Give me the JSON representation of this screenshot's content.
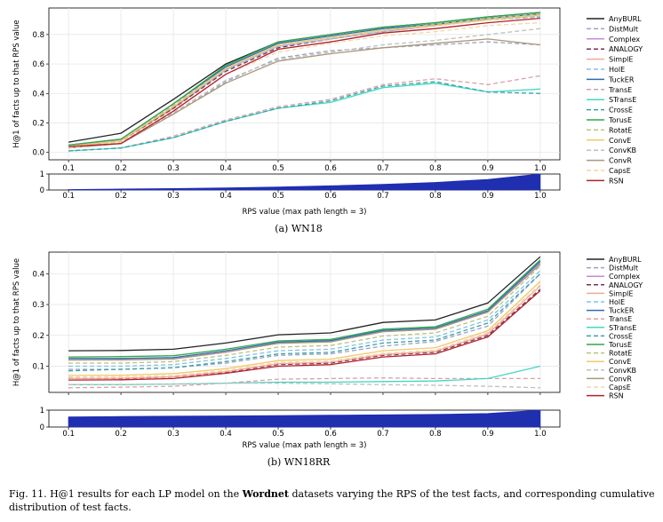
{
  "caption": {
    "prefix": "Fig. 11.  H@1 results for each LP model on the ",
    "bold": "Wordnet",
    "suffix": " datasets varying the RPS of the test facts, and corresponding cumulative distribution of test facts."
  },
  "chart_data": [
    {
      "type": "line",
      "subtitle": "(a) WN18",
      "ylabel": "H@1 of facts up to that RPS value",
      "xlabel": "RPS value (max path length = 3)",
      "x": [
        0.1,
        0.2,
        0.3,
        0.4,
        0.5,
        0.6,
        0.7,
        0.8,
        0.9,
        1.0
      ],
      "xticks": [
        "0.1",
        "0.2",
        "0.3",
        "0.4",
        "0.5",
        "0.6",
        "0.7",
        "0.8",
        "0.9",
        "1.0"
      ],
      "ylim": [
        -0.05,
        0.98
      ],
      "yticks": [
        0.0,
        0.2,
        0.4,
        0.6,
        0.8
      ],
      "ytick_labels": [
        "0.0",
        "0.2",
        "0.4",
        "0.6",
        "0.8"
      ],
      "grid": true,
      "legend": "right",
      "series": [
        {
          "name": "AnyBURL",
          "color": "#222222",
          "dash": "solid",
          "values": [
            0.07,
            0.13,
            0.36,
            0.6,
            0.75,
            0.8,
            0.85,
            0.88,
            0.92,
            0.95
          ]
        },
        {
          "name": "DistMult",
          "color": "#9aa3c4",
          "dash": "dashed",
          "values": [
            0.03,
            0.06,
            0.26,
            0.48,
            0.64,
            0.69,
            0.71,
            0.73,
            0.75,
            0.73
          ]
        },
        {
          "name": "Complex",
          "color": "#c58bd9",
          "dash": "solid",
          "values": [
            0.04,
            0.08,
            0.3,
            0.56,
            0.72,
            0.77,
            0.82,
            0.86,
            0.9,
            0.93
          ]
        },
        {
          "name": "ANALOGY",
          "color": "#7a2f5a",
          "dash": "dashed",
          "values": [
            0.03,
            0.07,
            0.3,
            0.55,
            0.71,
            0.77,
            0.82,
            0.86,
            0.9,
            0.92
          ]
        },
        {
          "name": "SimplE",
          "color": "#f2a89a",
          "dash": "solid",
          "values": [
            0.04,
            0.08,
            0.31,
            0.56,
            0.72,
            0.77,
            0.82,
            0.86,
            0.9,
            0.93
          ]
        },
        {
          "name": "HolE",
          "color": "#7ec3e8",
          "dash": "dashed",
          "values": [
            0.04,
            0.08,
            0.31,
            0.56,
            0.72,
            0.77,
            0.82,
            0.86,
            0.9,
            0.92
          ]
        },
        {
          "name": "TuckER",
          "color": "#2f6bb3",
          "dash": "solid",
          "values": [
            0.05,
            0.09,
            0.33,
            0.58,
            0.74,
            0.79,
            0.84,
            0.87,
            0.91,
            0.94
          ]
        },
        {
          "name": "TransE",
          "color": "#d9a0a8",
          "dash": "dashed",
          "values": [
            0.01,
            0.03,
            0.11,
            0.22,
            0.31,
            0.36,
            0.46,
            0.5,
            0.46,
            0.52
          ]
        },
        {
          "name": "STransE",
          "color": "#3fd9c2",
          "dash": "solid",
          "values": [
            0.01,
            0.03,
            0.1,
            0.21,
            0.3,
            0.34,
            0.44,
            0.47,
            0.41,
            0.43
          ]
        },
        {
          "name": "CrossE",
          "color": "#3aa0a8",
          "dash": "dashed",
          "values": [
            0.01,
            0.03,
            0.1,
            0.21,
            0.3,
            0.35,
            0.45,
            0.48,
            0.41,
            0.4
          ]
        },
        {
          "name": "TorusE",
          "color": "#2fa84f",
          "dash": "solid",
          "values": [
            0.05,
            0.09,
            0.33,
            0.59,
            0.75,
            0.8,
            0.85,
            0.88,
            0.92,
            0.95
          ]
        },
        {
          "name": "RotatE",
          "color": "#b8c47a",
          "dash": "dashed",
          "values": [
            0.04,
            0.08,
            0.32,
            0.57,
            0.73,
            0.78,
            0.83,
            0.87,
            0.91,
            0.94
          ]
        },
        {
          "name": "ConvE",
          "color": "#f0c96a",
          "dash": "solid",
          "values": [
            0.04,
            0.08,
            0.31,
            0.57,
            0.73,
            0.78,
            0.83,
            0.86,
            0.9,
            0.93
          ]
        },
        {
          "name": "ConvKB",
          "color": "#bfbfbf",
          "dash": "dashed",
          "values": [
            0.03,
            0.07,
            0.27,
            0.49,
            0.63,
            0.68,
            0.73,
            0.76,
            0.8,
            0.84
          ]
        },
        {
          "name": "ConvR",
          "color": "#a89878",
          "dash": "solid",
          "values": [
            0.03,
            0.06,
            0.26,
            0.47,
            0.62,
            0.67,
            0.71,
            0.74,
            0.77,
            0.73
          ]
        },
        {
          "name": "CapsE",
          "color": "#f3d7a6",
          "dash": "dashed",
          "values": [
            0.03,
            0.07,
            0.29,
            0.53,
            0.68,
            0.74,
            0.79,
            0.82,
            0.86,
            0.88
          ]
        },
        {
          "name": "RSN",
          "color": "#b3202a",
          "dash": "solid",
          "values": [
            0.04,
            0.06,
            0.28,
            0.53,
            0.7,
            0.75,
            0.81,
            0.84,
            0.88,
            0.91
          ]
        }
      ],
      "distribution": {
        "x": [
          0.1,
          0.2,
          0.3,
          0.4,
          0.5,
          0.6,
          0.7,
          0.8,
          0.9,
          1.0
        ],
        "values": [
          0.03,
          0.06,
          0.09,
          0.13,
          0.19,
          0.26,
          0.35,
          0.47,
          0.66,
          1.0
        ],
        "yticks": [
          "0",
          "1"
        ],
        "color": "#1f2fb0"
      }
    },
    {
      "type": "line",
      "subtitle": "(b) WN18RR",
      "ylabel": "H@1 of facts up to that RPS value",
      "xlabel": "RPS value (max path length = 3)",
      "x": [
        0.1,
        0.2,
        0.3,
        0.4,
        0.5,
        0.6,
        0.7,
        0.8,
        0.9,
        1.0
      ],
      "xticks": [
        "0.1",
        "0.2",
        "0.3",
        "0.4",
        "0.5",
        "0.6",
        "0.7",
        "0.8",
        "0.9",
        "1.0"
      ],
      "ylim": [
        0.015,
        0.47
      ],
      "yticks": [
        0.1,
        0.2,
        0.3,
        0.4
      ],
      "ytick_labels": [
        "0.1",
        "0.2",
        "0.3",
        "0.4"
      ],
      "grid": true,
      "legend": "right",
      "series": [
        {
          "name": "AnyBURL",
          "color": "#222222",
          "dash": "solid",
          "values": [
            0.15,
            0.151,
            0.155,
            0.175,
            0.202,
            0.208,
            0.242,
            0.25,
            0.305,
            0.455
          ]
        },
        {
          "name": "DistMult",
          "color": "#9aa3c4",
          "dash": "dashed",
          "values": [
            0.09,
            0.09,
            0.095,
            0.11,
            0.135,
            0.14,
            0.165,
            0.18,
            0.23,
            0.4
          ]
        },
        {
          "name": "Complex",
          "color": "#c58bd9",
          "dash": "solid",
          "values": [
            0.12,
            0.12,
            0.123,
            0.145,
            0.175,
            0.18,
            0.212,
            0.22,
            0.275,
            0.435
          ]
        },
        {
          "name": "ANALOGY",
          "color": "#7a2f5a",
          "dash": "dashed",
          "values": [
            0.06,
            0.06,
            0.065,
            0.08,
            0.105,
            0.11,
            0.135,
            0.145,
            0.2,
            0.35
          ]
        },
        {
          "name": "SimplE",
          "color": "#f2a89a",
          "dash": "solid",
          "values": [
            0.06,
            0.061,
            0.066,
            0.082,
            0.108,
            0.113,
            0.138,
            0.148,
            0.205,
            0.36
          ]
        },
        {
          "name": "HolE",
          "color": "#7ec3e8",
          "dash": "dashed",
          "values": [
            0.1,
            0.1,
            0.105,
            0.125,
            0.15,
            0.155,
            0.185,
            0.195,
            0.25,
            0.41
          ]
        },
        {
          "name": "TuckER",
          "color": "#2f6bb3",
          "dash": "solid",
          "values": [
            0.125,
            0.125,
            0.128,
            0.15,
            0.178,
            0.183,
            0.216,
            0.224,
            0.28,
            0.44
          ]
        },
        {
          "name": "TransE",
          "color": "#d9a0a8",
          "dash": "dashed",
          "values": [
            0.03,
            0.032,
            0.035,
            0.045,
            0.058,
            0.06,
            0.062,
            0.06,
            0.06,
            0.06
          ]
        },
        {
          "name": "STransE",
          "color": "#3fd9c2",
          "dash": "solid",
          "values": [
            0.04,
            0.04,
            0.042,
            0.045,
            0.048,
            0.048,
            0.05,
            0.052,
            0.06,
            0.1
          ]
        },
        {
          "name": "CrossE",
          "color": "#3aa0a8",
          "dash": "dashed",
          "values": [
            0.085,
            0.09,
            0.095,
            0.115,
            0.14,
            0.145,
            0.175,
            0.185,
            0.24,
            0.4
          ]
        },
        {
          "name": "TorusE",
          "color": "#2fa84f",
          "dash": "solid",
          "values": [
            0.13,
            0.131,
            0.134,
            0.155,
            0.182,
            0.187,
            0.22,
            0.228,
            0.285,
            0.445
          ]
        },
        {
          "name": "RotatE",
          "color": "#b8c47a",
          "dash": "dashed",
          "values": [
            0.11,
            0.11,
            0.115,
            0.135,
            0.162,
            0.167,
            0.198,
            0.208,
            0.262,
            0.425
          ]
        },
        {
          "name": "ConvE",
          "color": "#f0c96a",
          "dash": "solid",
          "values": [
            0.07,
            0.071,
            0.076,
            0.092,
            0.118,
            0.123,
            0.15,
            0.16,
            0.215,
            0.375
          ]
        },
        {
          "name": "ConvKB",
          "color": "#bfbfbf",
          "dash": "dashed",
          "values": [
            0.04,
            0.04,
            0.042,
            0.045,
            0.045,
            0.043,
            0.04,
            0.038,
            0.035,
            0.03
          ]
        },
        {
          "name": "ConvR",
          "color": "#a89878",
          "dash": "solid",
          "values": [
            0.12,
            0.121,
            0.124,
            0.146,
            0.174,
            0.179,
            0.212,
            0.22,
            0.276,
            0.43
          ]
        },
        {
          "name": "CapsE",
          "color": "#f3d7a6",
          "dash": "dashed",
          "values": [
            0.065,
            0.066,
            0.07,
            0.086,
            0.112,
            0.117,
            0.142,
            0.152,
            0.21,
            0.365
          ]
        },
        {
          "name": "RSN",
          "color": "#b3202a",
          "dash": "solid",
          "values": [
            0.055,
            0.056,
            0.06,
            0.077,
            0.1,
            0.105,
            0.13,
            0.14,
            0.195,
            0.345
          ]
        }
      ],
      "distribution": {
        "x": [
          0.1,
          0.2,
          0.3,
          0.4,
          0.5,
          0.6,
          0.7,
          0.8,
          0.9,
          1.0
        ],
        "values": [
          0.6,
          0.62,
          0.64,
          0.66,
          0.68,
          0.7,
          0.72,
          0.75,
          0.8,
          1.0
        ],
        "yticks": [
          "0",
          "1"
        ],
        "color": "#1f2fb0"
      }
    }
  ]
}
